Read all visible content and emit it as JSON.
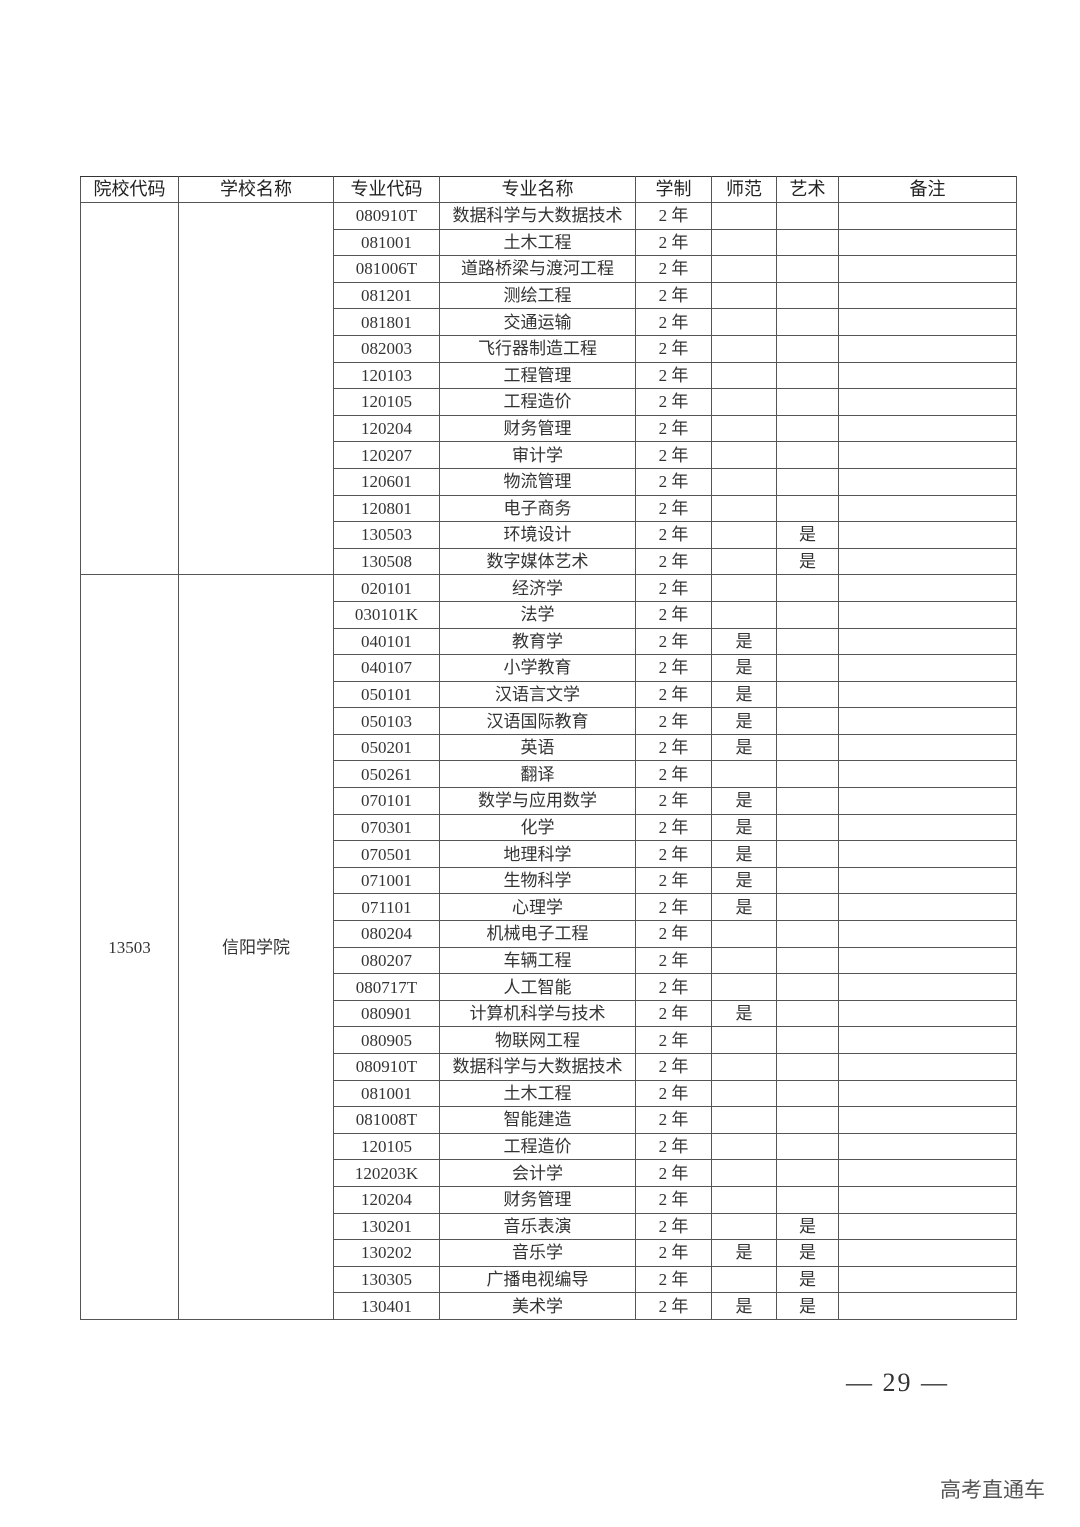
{
  "headers": [
    "院校代码",
    "学校名称",
    "专业代码",
    "专业名称",
    "学制",
    "师范",
    "艺术",
    "备注"
  ],
  "groups": [
    {
      "school_code": "",
      "school_name": "",
      "rows": [
        [
          "080910T",
          "数据科学与大数据技术",
          "2 年",
          "",
          ""
        ],
        [
          "081001",
          "土木工程",
          "2 年",
          "",
          ""
        ],
        [
          "081006T",
          "道路桥梁与渡河工程",
          "2 年",
          "",
          ""
        ],
        [
          "081201",
          "测绘工程",
          "2 年",
          "",
          ""
        ],
        [
          "081801",
          "交通运输",
          "2 年",
          "",
          ""
        ],
        [
          "082003",
          "飞行器制造工程",
          "2 年",
          "",
          ""
        ],
        [
          "120103",
          "工程管理",
          "2 年",
          "",
          ""
        ],
        [
          "120105",
          "工程造价",
          "2 年",
          "",
          ""
        ],
        [
          "120204",
          "财务管理",
          "2 年",
          "",
          ""
        ],
        [
          "120207",
          "审计学",
          "2 年",
          "",
          ""
        ],
        [
          "120601",
          "物流管理",
          "2 年",
          "",
          ""
        ],
        [
          "120801",
          "电子商务",
          "2 年",
          "",
          ""
        ],
        [
          "130503",
          "环境设计",
          "2 年",
          "",
          "是"
        ],
        [
          "130508",
          "数字媒体艺术",
          "2 年",
          "",
          "是"
        ]
      ]
    },
    {
      "school_code": "13503",
      "school_name": "信阳学院",
      "rows": [
        [
          "020101",
          "经济学",
          "2 年",
          "",
          ""
        ],
        [
          "030101K",
          "法学",
          "2 年",
          "",
          ""
        ],
        [
          "040101",
          "教育学",
          "2 年",
          "是",
          ""
        ],
        [
          "040107",
          "小学教育",
          "2 年",
          "是",
          ""
        ],
        [
          "050101",
          "汉语言文学",
          "2 年",
          "是",
          ""
        ],
        [
          "050103",
          "汉语国际教育",
          "2 年",
          "是",
          ""
        ],
        [
          "050201",
          "英语",
          "2 年",
          "是",
          ""
        ],
        [
          "050261",
          "翻译",
          "2 年",
          "",
          ""
        ],
        [
          "070101",
          "数学与应用数学",
          "2 年",
          "是",
          ""
        ],
        [
          "070301",
          "化学",
          "2 年",
          "是",
          ""
        ],
        [
          "070501",
          "地理科学",
          "2 年",
          "是",
          ""
        ],
        [
          "071001",
          "生物科学",
          "2 年",
          "是",
          ""
        ],
        [
          "071101",
          "心理学",
          "2 年",
          "是",
          ""
        ],
        [
          "080204",
          "机械电子工程",
          "2 年",
          "",
          ""
        ],
        [
          "080207",
          "车辆工程",
          "2 年",
          "",
          ""
        ],
        [
          "080717T",
          "人工智能",
          "2 年",
          "",
          ""
        ],
        [
          "080901",
          "计算机科学与技术",
          "2 年",
          "是",
          ""
        ],
        [
          "080905",
          "物联网工程",
          "2 年",
          "",
          ""
        ],
        [
          "080910T",
          "数据科学与大数据技术",
          "2 年",
          "",
          ""
        ],
        [
          "081001",
          "土木工程",
          "2 年",
          "",
          ""
        ],
        [
          "081008T",
          "智能建造",
          "2 年",
          "",
          ""
        ],
        [
          "120105",
          "工程造价",
          "2 年",
          "",
          ""
        ],
        [
          "120203K",
          "会计学",
          "2 年",
          "",
          ""
        ],
        [
          "120204",
          "财务管理",
          "2 年",
          "",
          ""
        ],
        [
          "130201",
          "音乐表演",
          "2 年",
          "",
          "是"
        ],
        [
          "130202",
          "音乐学",
          "2 年",
          "是",
          "是"
        ],
        [
          "130305",
          "广播电视编导",
          "2 年",
          "",
          "是"
        ],
        [
          "130401",
          "美术学",
          "2 年",
          "是",
          "是"
        ]
      ]
    }
  ],
  "footer": {
    "page_number": "— 29 —"
  },
  "watermark": "高考直通车"
}
